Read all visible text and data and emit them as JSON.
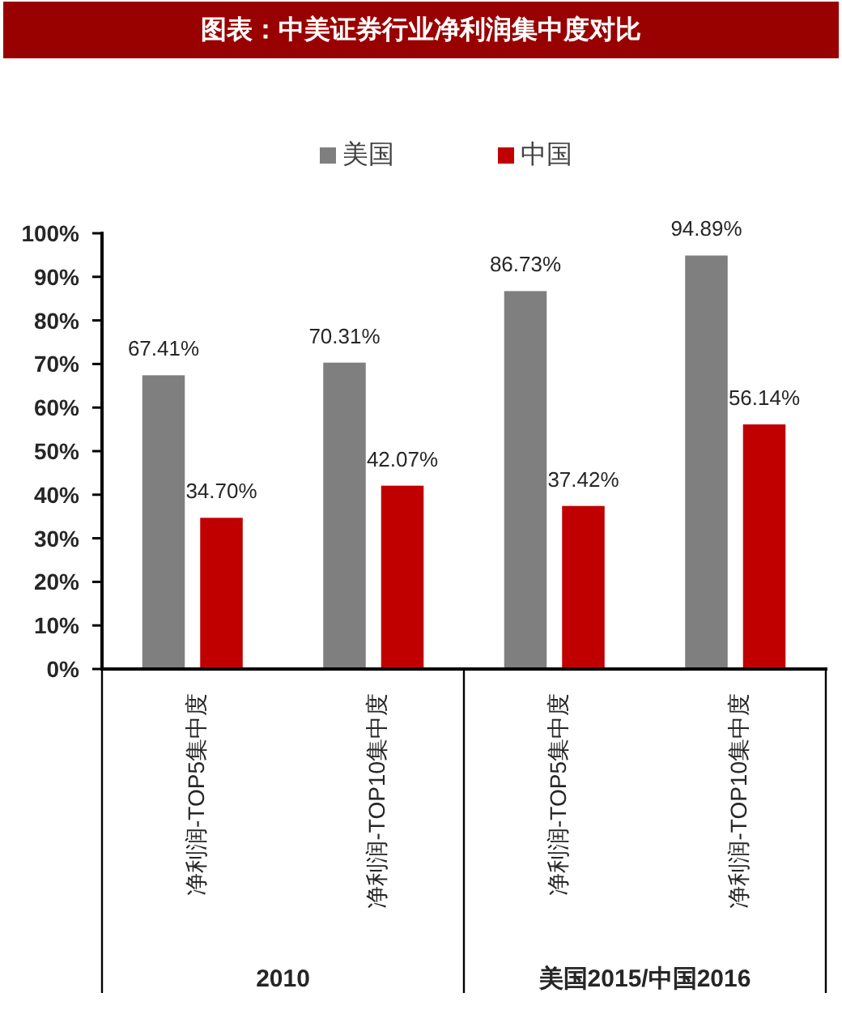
{
  "chart_data": {
    "type": "bar",
    "title": "图表：中美证券行业净利润集中度对比",
    "categories": [
      "净利润-TOP5集中度",
      "净利润-TOP10集中度",
      "净利润-TOP5集中度",
      "净利润-TOP10集中度"
    ],
    "series": [
      {
        "name": "美国",
        "color": "#7f7f7f",
        "values": [
          67.41,
          70.31,
          86.73,
          94.89
        ],
        "value_labels": [
          "67.41%",
          "70.31%",
          "86.73%",
          "94.89%"
        ]
      },
      {
        "name": "中国",
        "color": "#c00000",
        "values": [
          34.7,
          42.07,
          37.42,
          56.14
        ],
        "value_labels": [
          "34.70%",
          "42.07%",
          "37.42%",
          "56.14%"
        ]
      }
    ],
    "ylim": [
      0,
      100
    ],
    "yticks": [
      {
        "value": 0,
        "label": "0%"
      },
      {
        "value": 10,
        "label": "10%"
      },
      {
        "value": 20,
        "label": "20%"
      },
      {
        "value": 30,
        "label": "30%"
      },
      {
        "value": 40,
        "label": "40%"
      },
      {
        "value": 50,
        "label": "50%"
      },
      {
        "value": 60,
        "label": "60%"
      },
      {
        "value": 70,
        "label": "70%"
      },
      {
        "value": 80,
        "label": "80%"
      },
      {
        "value": 90,
        "label": "90%"
      },
      {
        "value": 100,
        "label": "100%"
      }
    ],
    "grid": false,
    "legend": "top",
    "annotations": [
      "2010",
      "美国2015/中国2016"
    ]
  }
}
